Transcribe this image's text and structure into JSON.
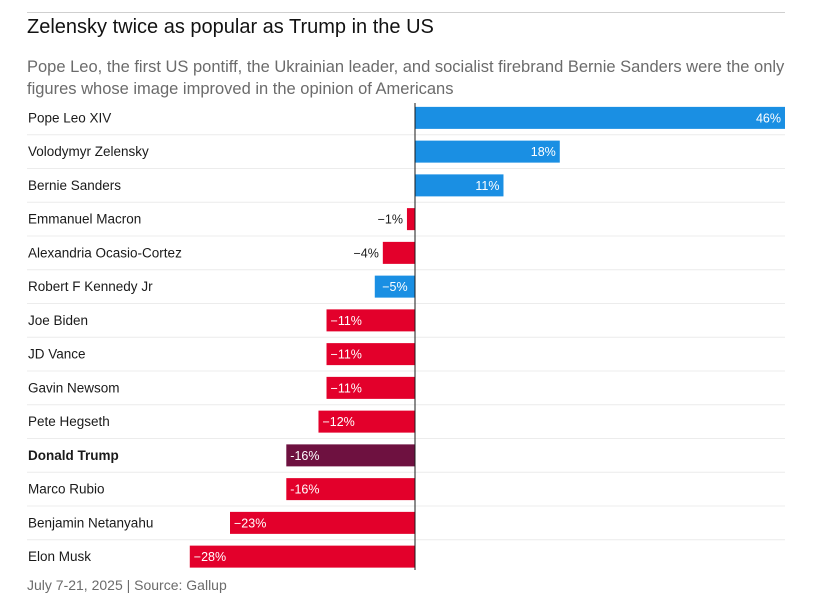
{
  "chart_data": {
    "type": "bar",
    "orientation": "horizontal",
    "title": "Zelensky twice as popular as Trump in the US",
    "subtitle": "Pope Leo, the first US pontiff, the Ukrainian leader, and socialist firebrand Bernie Sanders were the only figures whose image improved in the opinion of Americans",
    "source": "July 7-21, 2025 | Source: Gallup",
    "xlim": [
      -28,
      46
    ],
    "unit": "%",
    "highlight": "Donald Trump",
    "categories": [
      "Pope Leo XIV",
      "Volodymyr Zelensky",
      "Bernie Sanders",
      "Emmanuel Macron",
      "Alexandria Ocasio-Cortez",
      "Robert F Kennedy Jr",
      "Joe Biden",
      "JD Vance",
      "Gavin Newsom",
      "Pete Hegseth",
      "Donald Trump",
      "Marco Rubio",
      "Benjamin Netanyahu",
      "Elon Musk"
    ],
    "values": [
      46,
      18,
      11,
      -1,
      -4,
      -5,
      -11,
      -11,
      -11,
      -12,
      -16,
      -16,
      -23,
      -28
    ],
    "labels": [
      "46%",
      "18%",
      "11%",
      "−1%",
      "−4%",
      "−5%",
      "−11%",
      "−11%",
      "−11%",
      "−12%",
      "-16%",
      "-16%",
      "−23%",
      "−28%"
    ],
    "bar_colors": [
      "#1a8fe3",
      "#1a8fe3",
      "#1a8fe3",
      "#e3002b",
      "#e3002b",
      "#1a8fe3",
      "#e3002b",
      "#e3002b",
      "#e3002b",
      "#e3002b",
      "#6e1140",
      "#e3002b",
      "#e3002b",
      "#e3002b"
    ]
  }
}
